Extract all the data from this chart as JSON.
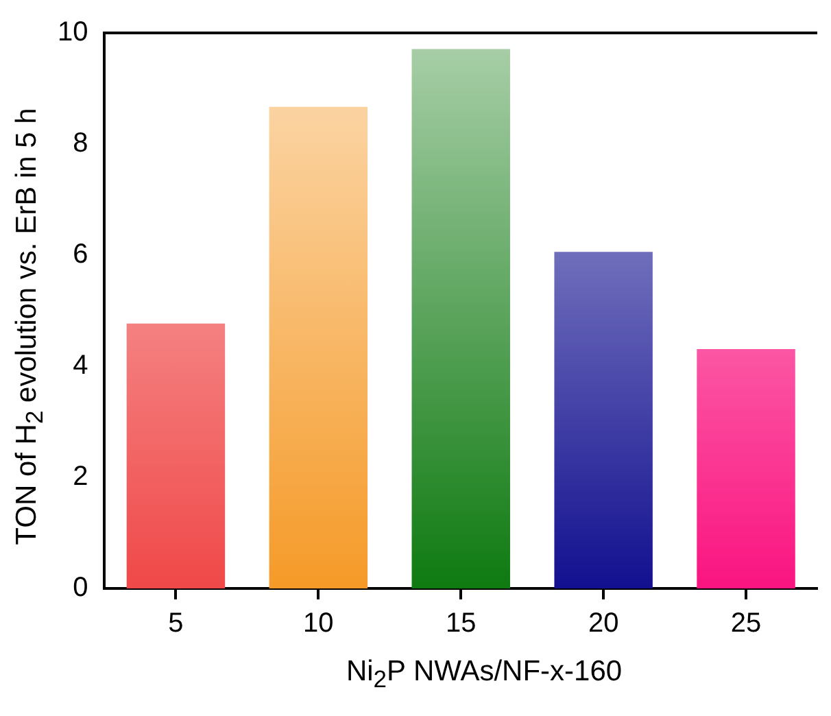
{
  "chart_data": {
    "type": "bar",
    "xlabel": "Ni$_{2}$P NWAs/NF-x-160",
    "ylabel": "TON of H$_{2}$ evolution vs. ErB in 5 h",
    "categories": [
      "5",
      "10",
      "15",
      "20",
      "25"
    ],
    "values": [
      4.77,
      8.67,
      9.71,
      6.06,
      4.31
    ],
    "colors": [
      "#f04848",
      "#f59a28",
      "#0e7a10",
      "#12108f",
      "#fa1480"
    ],
    "ylim": [
      0,
      10
    ],
    "yticks": [
      0,
      2,
      4,
      6,
      8,
      10
    ],
    "grid": false,
    "legend": false
  }
}
